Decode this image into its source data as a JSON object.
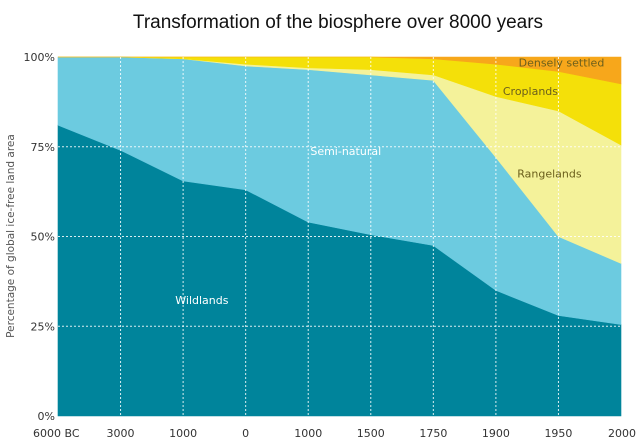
{
  "chart_data": {
    "type": "area",
    "stacked": true,
    "title": "Transformation of the biosphere over 8000 years",
    "xlabel": "",
    "ylabel": "Percentage of global ice-free land area",
    "x": [
      "6000 BC",
      "3000",
      "1000",
      "0",
      "1000",
      "1500",
      "1750",
      "1900",
      "1950",
      "2000"
    ],
    "ylim": [
      0,
      100
    ],
    "yticks": [
      "0%",
      "25%",
      "50%",
      "75%",
      "100%"
    ],
    "grid": true,
    "series": [
      {
        "name": "Wildlands",
        "color": "#00849b",
        "values": [
          81,
          74,
          65.5,
          63,
          54,
          50.5,
          47.5,
          35,
          28,
          25.5
        ]
      },
      {
        "name": "Semi-natural",
        "color": "#6ccbe0",
        "values": [
          19,
          26,
          34,
          34.5,
          42.5,
          44.5,
          46,
          37,
          22,
          17
        ]
      },
      {
        "name": "Rangelands",
        "color": "#f4f29a",
        "values": [
          0,
          0,
          0,
          0.5,
          0.5,
          1.5,
          1.5,
          17,
          35,
          33
        ]
      },
      {
        "name": "Croplands",
        "color": "#f4e009",
        "values": [
          0,
          0,
          0.5,
          2,
          3,
          3.5,
          4.5,
          9,
          11,
          17
        ]
      },
      {
        "name": "Densely settled",
        "color": "#f7a71b",
        "values": [
          0,
          0,
          0,
          0,
          0,
          0,
          0.5,
          2,
          4,
          7.5
        ]
      }
    ],
    "annotations": [
      {
        "text": "Wildlands",
        "color": "#ffffff"
      },
      {
        "text": "Semi-natural",
        "color": "#ffffff"
      },
      {
        "text": "Rangelands",
        "color": "#6b5f1c"
      },
      {
        "text": "Croplands",
        "color": "#6b5f1c"
      },
      {
        "text": "Densely settled",
        "color": "#6b5f1c"
      }
    ]
  }
}
